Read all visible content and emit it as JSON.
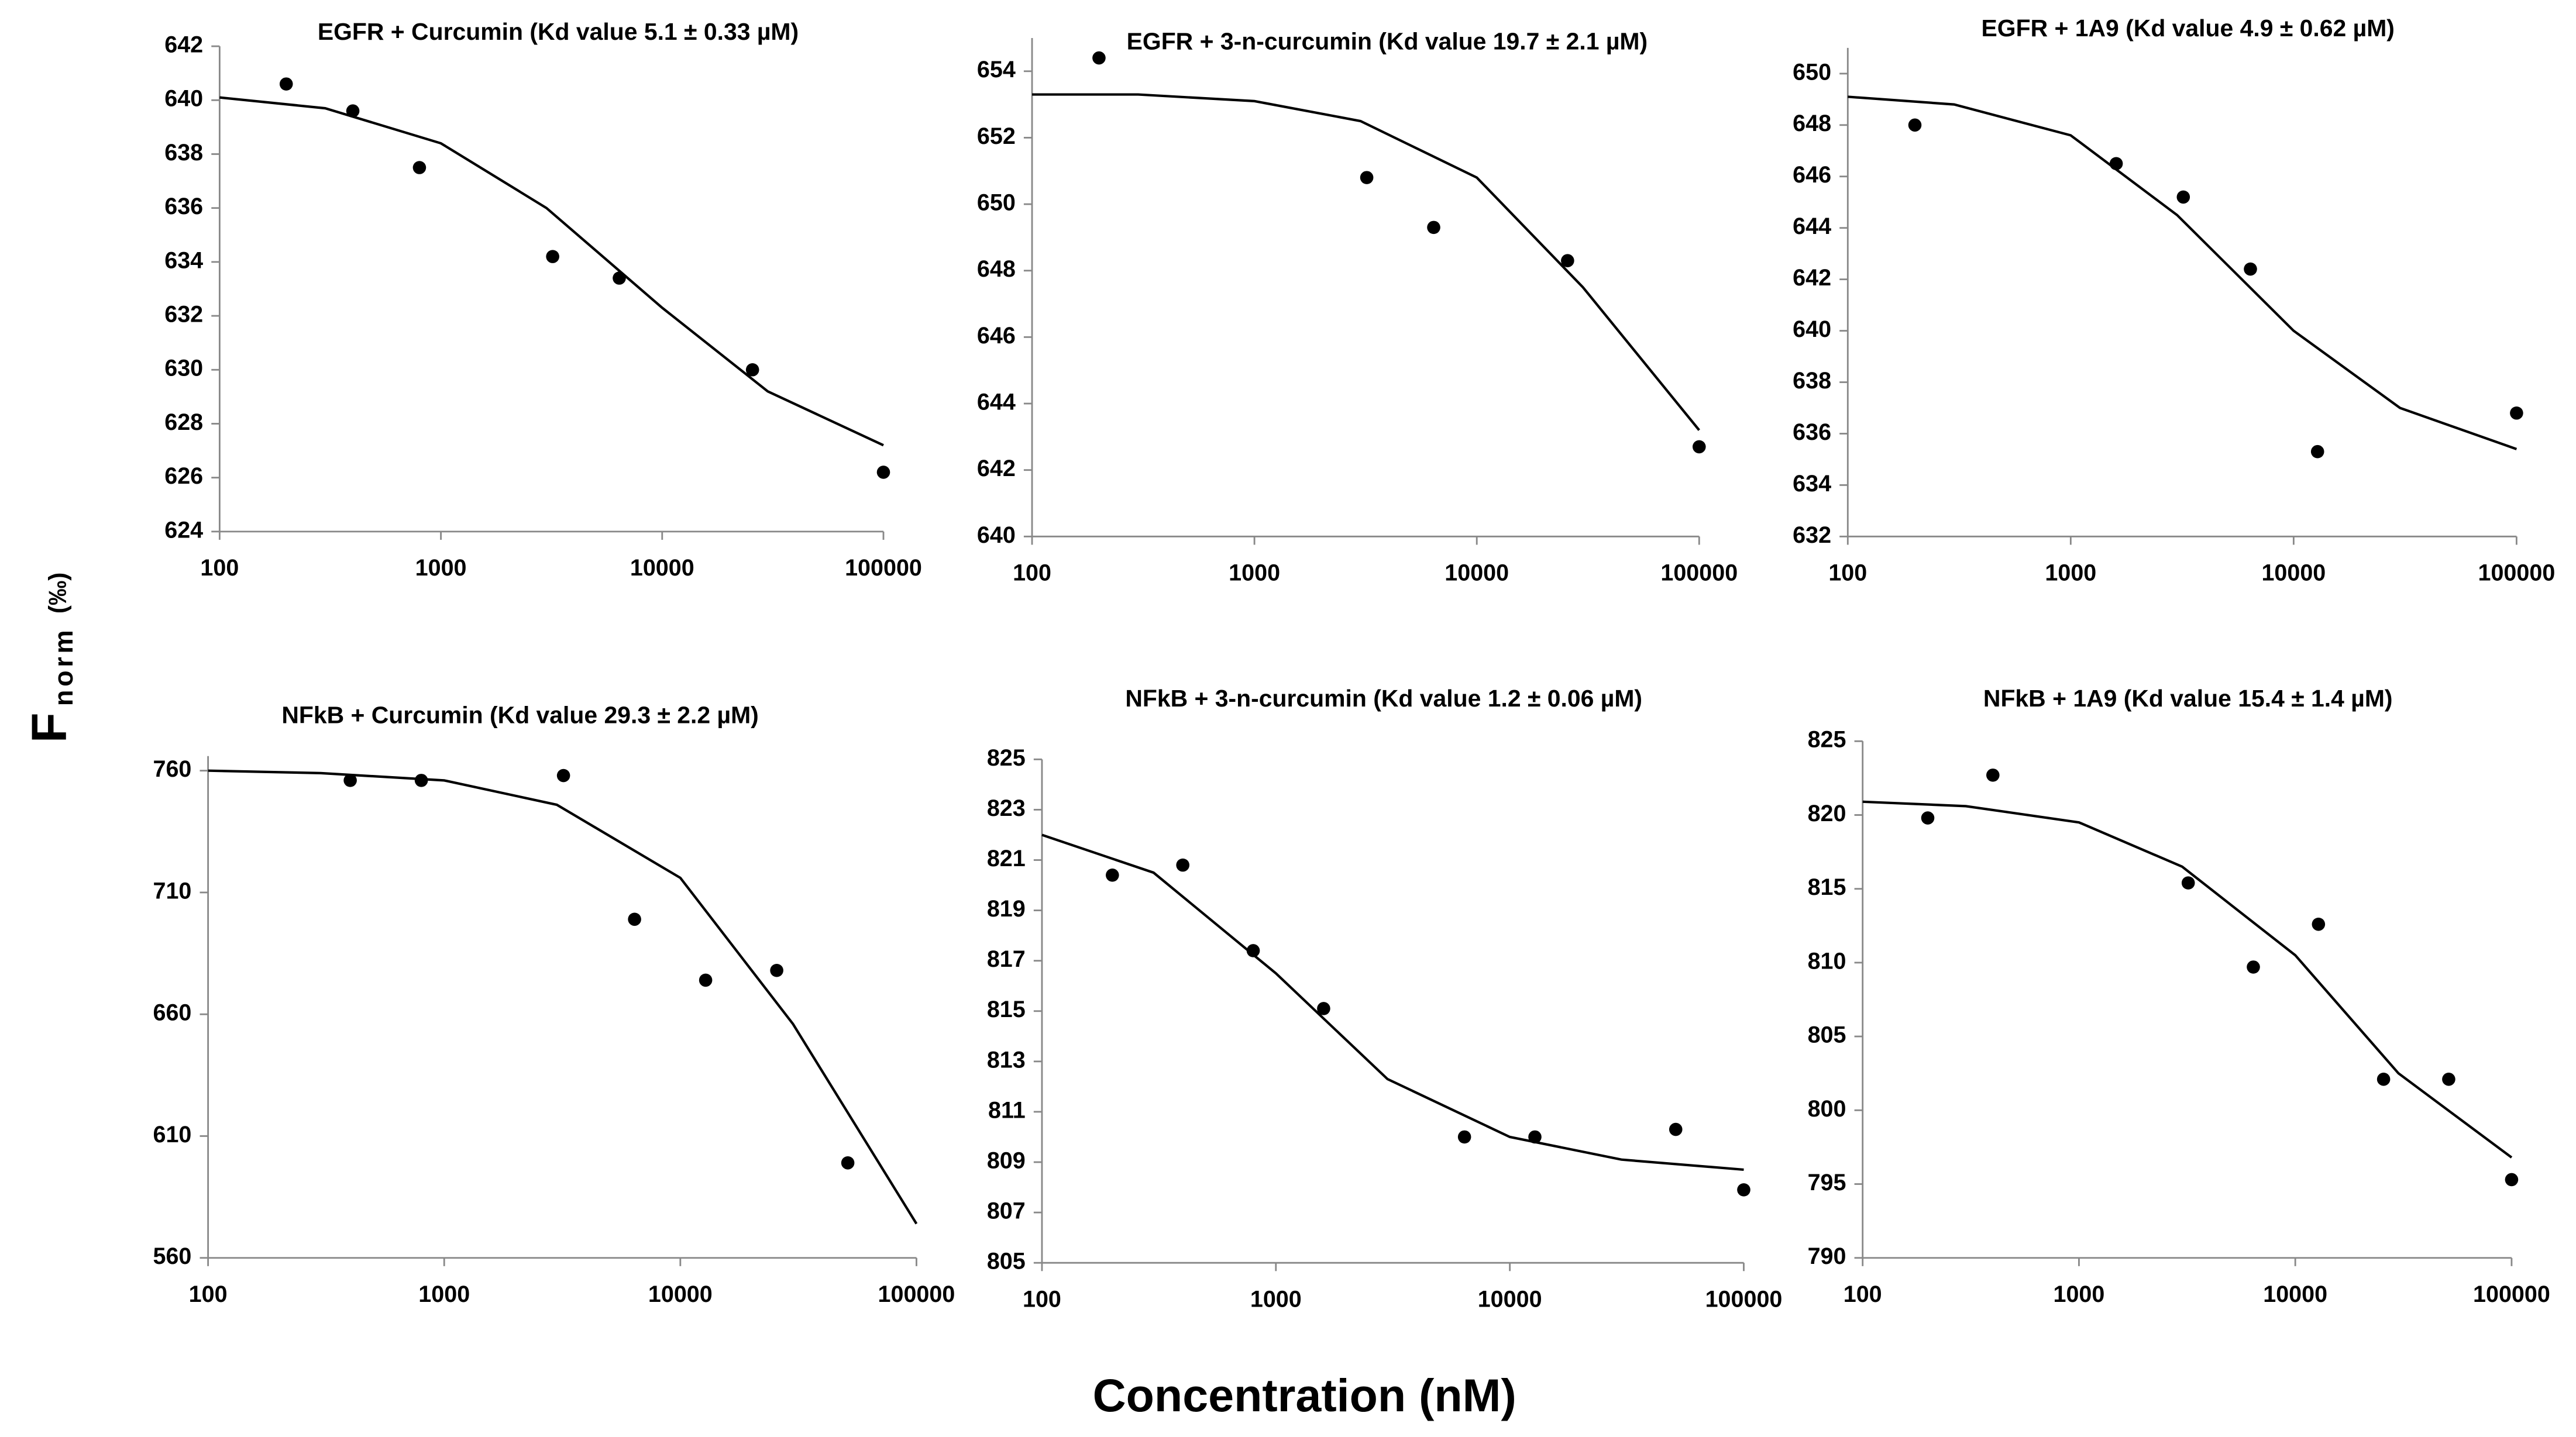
{
  "axis_labels": {
    "x": "Concentration (nM)",
    "y": "F",
    "y_sub": "norm",
    "y_unit": "(‰)"
  },
  "chart_data": [
    {
      "type": "scatter",
      "title": "EGFR + Curcumin (Kd value 5.1 ± 0.33 µM)",
      "log_x": true,
      "grid": false,
      "color": "#000000",
      "xlim": [
        100,
        100000
      ],
      "xticks": [
        100,
        1000,
        10000,
        100000
      ],
      "ylim": [
        624,
        642
      ],
      "yticks": [
        624,
        626,
        628,
        630,
        632,
        634,
        636,
        638,
        640,
        642
      ],
      "points": {
        "x": [
          200,
          400,
          800,
          3200,
          6400,
          25600,
          100000
        ],
        "y": [
          640.6,
          639.6,
          637.5,
          634.2,
          633.4,
          630.0,
          626.2
        ]
      },
      "fit": {
        "x": [
          100,
          300,
          1000,
          3000,
          10000,
          30000,
          100000
        ],
        "y": [
          640.1,
          639.7,
          638.4,
          636.0,
          632.3,
          629.2,
          627.2
        ]
      }
    },
    {
      "type": "scatter",
      "title": "EGFR + 3-n-curcumin (Kd value 19.7 ± 2.1 µM)",
      "log_x": true,
      "grid": false,
      "color": "#000000",
      "xlim": [
        100,
        100000
      ],
      "xticks": [
        100,
        1000,
        10000,
        100000
      ],
      "ylim": [
        640,
        655
      ],
      "yticks": [
        640,
        642,
        644,
        646,
        648,
        650,
        652,
        654
      ],
      "points": {
        "x": [
          200,
          3200,
          6400,
          25600,
          100000
        ],
        "y": [
          654.4,
          650.8,
          649.3,
          648.3,
          642.7
        ]
      },
      "fit": {
        "x": [
          100,
          300,
          1000,
          3000,
          10000,
          30000,
          100000
        ],
        "y": [
          653.3,
          653.3,
          653.1,
          652.5,
          650.8,
          647.5,
          643.2
        ]
      }
    },
    {
      "type": "scatter",
      "title": "EGFR + 1A9 (Kd value 4.9 ± 0.62 µM)",
      "log_x": true,
      "grid": false,
      "color": "#000000",
      "xlim": [
        100,
        100000
      ],
      "xticks": [
        100,
        1000,
        10000,
        100000
      ],
      "ylim": [
        632,
        651
      ],
      "yticks": [
        632,
        634,
        636,
        638,
        640,
        642,
        644,
        646,
        648,
        650
      ],
      "points": {
        "x": [
          200,
          1600,
          3200,
          6400,
          12800,
          100000
        ],
        "y": [
          648.0,
          646.5,
          645.2,
          642.4,
          635.3,
          636.8
        ]
      },
      "fit": {
        "x": [
          100,
          300,
          1000,
          3000,
          10000,
          30000,
          100000
        ],
        "y": [
          649.1,
          648.8,
          647.6,
          644.5,
          640.0,
          637.0,
          635.4
        ]
      }
    },
    {
      "type": "scatter",
      "title": "NFkB + Curcumin (Kd value 29.3 ± 2.2 µM)",
      "log_x": true,
      "grid": false,
      "color": "#000000",
      "xlim": [
        100,
        100000
      ],
      "xticks": [
        100,
        1000,
        10000,
        100000
      ],
      "ylim": [
        560,
        766
      ],
      "yticks": [
        560,
        610,
        660,
        710,
        760
      ],
      "points": {
        "x": [
          400,
          800,
          3200,
          6400,
          12800,
          25600,
          51200
        ],
        "y": [
          756,
          756,
          758,
          699,
          674,
          678,
          599
        ]
      },
      "fit": {
        "x": [
          100,
          300,
          1000,
          3000,
          10000,
          30000,
          100000
        ],
        "y": [
          760,
          759,
          756,
          746,
          716,
          656,
          574
        ]
      }
    },
    {
      "type": "scatter",
      "title": "NFkB + 3-n-curcumin (Kd value 1.2 ± 0.06 µM)",
      "log_x": true,
      "grid": false,
      "color": "#000000",
      "xlim": [
        100,
        100000
      ],
      "xticks": [
        100,
        1000,
        10000,
        100000
      ],
      "ylim": [
        805,
        825
      ],
      "yticks": [
        805,
        807,
        809,
        811,
        813,
        815,
        817,
        819,
        821,
        823,
        825
      ],
      "points": {
        "x": [
          200,
          400,
          800,
          1600,
          6400,
          12800,
          51200,
          100000
        ],
        "y": [
          820.4,
          820.8,
          817.4,
          815.1,
          810.0,
          810.0,
          810.3,
          807.9
        ]
      },
      "fit": {
        "x": [
          100,
          300,
          1000,
          3000,
          10000,
          30000,
          100000
        ],
        "y": [
          822.0,
          820.5,
          816.5,
          812.3,
          810.0,
          809.1,
          808.7
        ]
      }
    },
    {
      "type": "scatter",
      "title": "NFkB + 1A9 (Kd value 15.4 ± 1.4 µM)",
      "log_x": true,
      "grid": false,
      "color": "#000000",
      "xlim": [
        100,
        100000
      ],
      "xticks": [
        100,
        1000,
        10000,
        100000
      ],
      "ylim": [
        790,
        825
      ],
      "yticks": [
        790,
        795,
        800,
        805,
        810,
        815,
        820,
        825
      ],
      "points": {
        "x": [
          200,
          400,
          3200,
          6400,
          12800,
          25600,
          51200,
          100000
        ],
        "y": [
          819.8,
          822.7,
          815.4,
          809.7,
          812.6,
          802.1,
          802.1,
          795.3
        ]
      },
      "fit": {
        "x": [
          100,
          300,
          1000,
          3000,
          10000,
          30000,
          100000
        ],
        "y": [
          820.9,
          820.6,
          819.5,
          816.5,
          810.5,
          802.5,
          796.8
        ]
      }
    }
  ]
}
